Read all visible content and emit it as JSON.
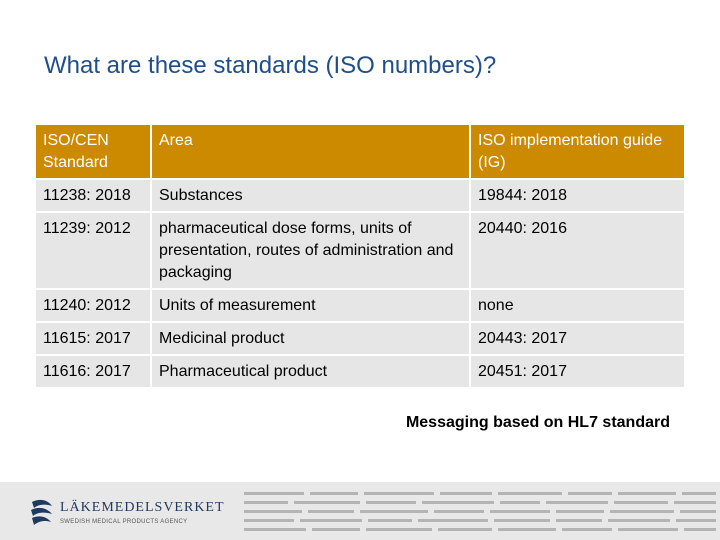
{
  "slide": {
    "title": "What are these standards (ISO numbers)?",
    "note": "Messaging based on HL7 standard"
  },
  "table": {
    "headers": [
      "ISO/CEN Standard",
      "Area",
      "ISO implementation guide (IG)"
    ],
    "rows": [
      [
        "11238: 2018",
        "Substances",
        "19844: 2018"
      ],
      [
        "11239: 2012",
        "pharmaceutical dose forms, units of presentation, routes of administration and packaging",
        "20440: 2016"
      ],
      [
        "11240: 2012",
        "Units of measurement",
        "none"
      ],
      [
        "11615: 2017",
        "Medicinal product",
        "20443: 2017"
      ],
      [
        "11616: 2017",
        "Pharmaceutical product",
        "20451: 2017"
      ]
    ]
  },
  "footer": {
    "logo_name": "LÄKEMEDELSVERKET",
    "logo_sub": "SWEDISH MEDICAL PRODUCTS AGENCY"
  },
  "colors": {
    "title": "#1f4e8c",
    "header_bg": "#cc8a00",
    "row_bg": "#e6e6e6",
    "footer_bg": "#e8e8e8"
  }
}
